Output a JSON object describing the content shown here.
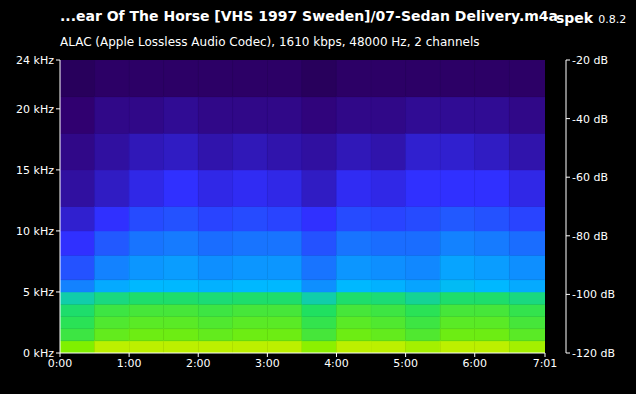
{
  "chart_data": {
    "type": "heatmap",
    "title": "...ear Of The Horse [VHS 1997 Sweden]/07-Sedan Delivery.m4a",
    "subtitle": "ALAC (Apple Lossless Audio Codec), 1610 kbps, 48000 Hz, 2 channels",
    "annotations": [
      "spek",
      "0.8.2"
    ],
    "x_bins": [
      0,
      30,
      60,
      90,
      120,
      150,
      180,
      210,
      240,
      270,
      300,
      330,
      360,
      390,
      421
    ],
    "y_bins": [
      0,
      1,
      2,
      3,
      4,
      5,
      6,
      8,
      10,
      12,
      15,
      18,
      21,
      24
    ],
    "cells": [
      [
        -55,
        -62,
        -64,
        -66,
        -72,
        -88,
        -95,
        -100,
        -104,
        -108,
        -110,
        -112,
        -114
      ],
      [
        -50,
        -58,
        -60,
        -62,
        -68,
        -82,
        -88,
        -94,
        -100,
        -105,
        -108,
        -110,
        -113
      ],
      [
        -50,
        -57,
        -59,
        -61,
        -66,
        -80,
        -85,
        -90,
        -96,
        -102,
        -106,
        -110,
        -113
      ],
      [
        -50,
        -57,
        -59,
        -61,
        -66,
        -80,
        -84,
        -89,
        -95,
        -100,
        -105,
        -109,
        -113
      ],
      [
        -50,
        -58,
        -60,
        -62,
        -67,
        -81,
        -86,
        -91,
        -97,
        -102,
        -107,
        -110,
        -113
      ],
      [
        -50,
        -57,
        -59,
        -61,
        -66,
        -80,
        -85,
        -90,
        -96,
        -101,
        -106,
        -110,
        -113
      ],
      [
        -50,
        -57,
        -59,
        -61,
        -66,
        -80,
        -85,
        -90,
        -97,
        -102,
        -107,
        -110,
        -113
      ],
      [
        -54,
        -61,
        -63,
        -65,
        -72,
        -86,
        -90,
        -95,
        -100,
        -105,
        -108,
        -111,
        -114
      ],
      [
        -50,
        -57,
        -59,
        -61,
        -66,
        -80,
        -85,
        -90,
        -96,
        -101,
        -106,
        -110,
        -113
      ],
      [
        -50,
        -58,
        -60,
        -62,
        -67,
        -81,
        -86,
        -91,
        -97,
        -102,
        -107,
        -110,
        -113
      ],
      [
        -52,
        -60,
        -62,
        -64,
        -70,
        -83,
        -87,
        -91,
        -96,
        -100,
        -104,
        -109,
        -113
      ],
      [
        -50,
        -57,
        -59,
        -61,
        -66,
        -79,
        -83,
        -88,
        -94,
        -100,
        -104,
        -109,
        -113
      ],
      [
        -50,
        -57,
        -59,
        -61,
        -66,
        -80,
        -84,
        -89,
        -95,
        -100,
        -105,
        -109,
        -113
      ],
      [
        -52,
        -59,
        -61,
        -63,
        -68,
        -82,
        -86,
        -91,
        -97,
        -102,
        -107,
        -110,
        -113
      ]
    ],
    "xlim": [
      0,
      421
    ],
    "xticks": [
      {
        "value": 0,
        "label": "0:00"
      },
      {
        "value": 60,
        "label": "1:00"
      },
      {
        "value": 120,
        "label": "2:00"
      },
      {
        "value": 180,
        "label": "3:00"
      },
      {
        "value": 240,
        "label": "4:00"
      },
      {
        "value": 300,
        "label": "5:00"
      },
      {
        "value": 360,
        "label": "6:00"
      },
      {
        "value": 421,
        "label": "7:01"
      }
    ],
    "ylim": [
      0,
      24
    ],
    "yticks": [
      {
        "value": 0,
        "label": "0 kHz"
      },
      {
        "value": 5,
        "label": "5 kHz"
      },
      {
        "value": 10,
        "label": "10 kHz"
      },
      {
        "value": 15,
        "label": "15 kHz"
      },
      {
        "value": 20,
        "label": "20 kHz"
      },
      {
        "value": 24,
        "label": "24 kHz"
      }
    ],
    "colorbar": {
      "range": [
        -120,
        -20
      ],
      "ticks": [
        {
          "value": -20,
          "label": "-20 dB"
        },
        {
          "value": -40,
          "label": "-40 dB"
        },
        {
          "value": -60,
          "label": "-60 dB"
        },
        {
          "value": -80,
          "label": "-80 dB"
        },
        {
          "value": -100,
          "label": "-100 dB"
        },
        {
          "value": -120,
          "label": "-120 dB"
        }
      ]
    }
  }
}
